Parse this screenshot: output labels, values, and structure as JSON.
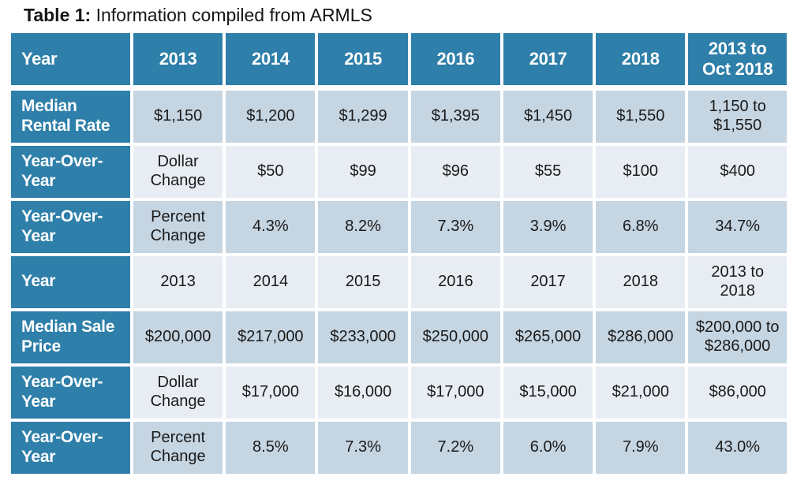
{
  "title": {
    "prefix": "Table 1:",
    "text": " Information compiled from ARMLS"
  },
  "colors": {
    "header_bg": "#2e7fa9",
    "row_dark": "#c5d5e2",
    "row_light": "#e8edf3",
    "header_text": "#ffffff",
    "cell_text": "#1a1a1a"
  },
  "table": {
    "header": [
      "Year",
      "2013",
      "2014",
      "2015",
      "2016",
      "2017",
      "2018",
      "2013 to Oct 2018"
    ],
    "rows": [
      {
        "label": "Median Rental Rate",
        "shade": "dark",
        "cells": [
          "$1,150",
          "$1,200",
          "$1,299",
          "$1,395",
          "$1,450",
          "$1,550",
          "1,150 to $1,550"
        ]
      },
      {
        "label": "Year-Over-Year",
        "shade": "light",
        "cells": [
          "Dollar Change",
          "$50",
          "$99",
          "$96",
          "$55",
          "$100",
          "$400"
        ]
      },
      {
        "label": "Year-Over-Year",
        "shade": "dark",
        "cells": [
          "Percent Change",
          "4.3%",
          "8.2%",
          "7.3%",
          "3.9%",
          "6.8%",
          "34.7%"
        ]
      },
      {
        "label": "Year",
        "shade": "light",
        "cells": [
          "2013",
          "2014",
          "2015",
          "2016",
          "2017",
          "2018",
          "2013 to 2018"
        ]
      },
      {
        "label": "Median Sale Price",
        "shade": "dark",
        "cells": [
          "$200,000",
          "$217,000",
          "$233,000",
          "$250,000",
          "$265,000",
          "$286,000",
          "$200,000 to $286,000"
        ]
      },
      {
        "label": "Year-Over-Year",
        "shade": "light",
        "cells": [
          "Dollar Change",
          "$17,000",
          "$16,000",
          "$17,000",
          "$15,000",
          "$21,000",
          "$86,000"
        ]
      },
      {
        "label": "Year-Over-Year",
        "shade": "dark",
        "cells": [
          "Percent Change",
          "8.5%",
          "7.3%",
          "7.2%",
          "6.0%",
          "7.9%",
          "43.0%"
        ]
      }
    ]
  }
}
